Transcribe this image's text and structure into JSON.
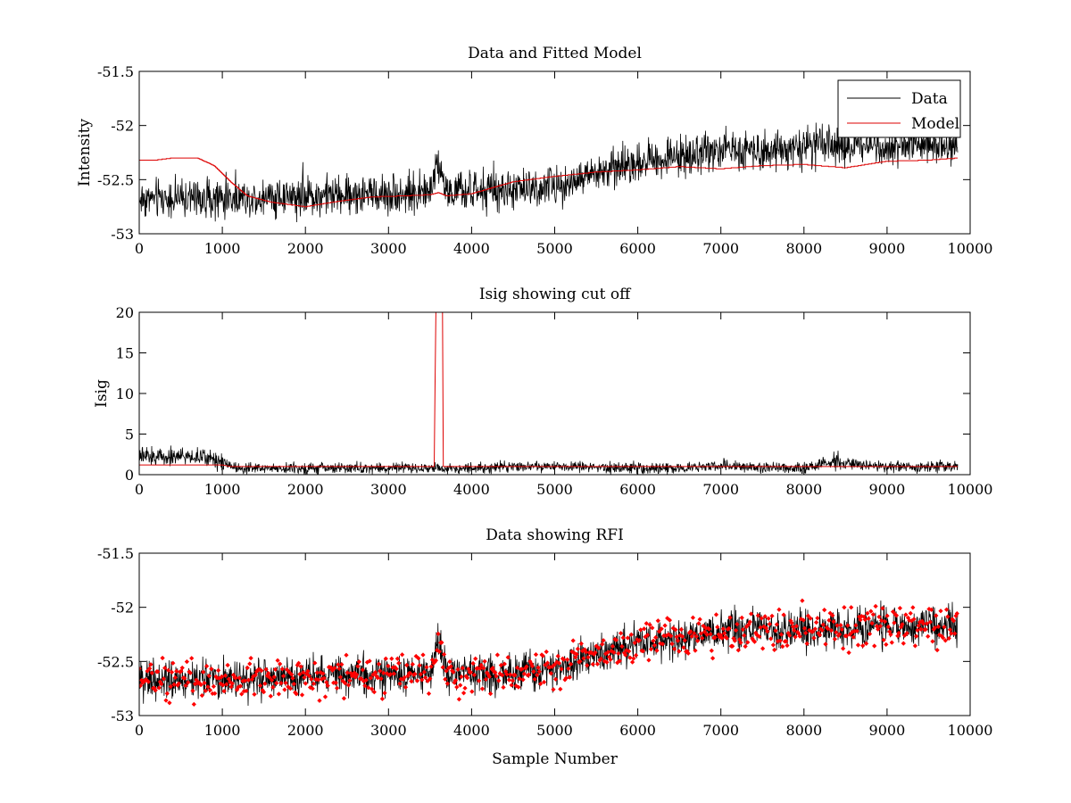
{
  "chart_data": [
    {
      "type": "line",
      "title": "Data and Fitted Model",
      "xlabel": "",
      "ylabel": "Intensity",
      "xlim": [
        0,
        10000
      ],
      "ylim": [
        -53,
        -51.5
      ],
      "x_ticks": [
        "0",
        "1000",
        "2000",
        "3000",
        "4000",
        "5000",
        "6000",
        "7000",
        "8000",
        "9000",
        "10000"
      ],
      "y_ticks": [
        "-53",
        "-52.5",
        "-52",
        "-51.5"
      ],
      "legend_position": "top-right",
      "series": [
        {
          "name": "Data",
          "color": "#000000",
          "style": "noisy line, ~9850 samples, noise amplitude ~0.1",
          "x": [
            0,
            500,
            1000,
            1500,
            2000,
            2500,
            3000,
            3500,
            3600,
            3700,
            4000,
            4500,
            5000,
            5500,
            6000,
            6500,
            7000,
            7500,
            8000,
            8500,
            9000,
            9500,
            9850
          ],
          "values": [
            -52.68,
            -52.67,
            -52.67,
            -52.66,
            -52.65,
            -52.64,
            -52.63,
            -52.62,
            -52.3,
            -52.62,
            -52.62,
            -52.6,
            -52.56,
            -52.45,
            -52.33,
            -52.28,
            -52.22,
            -52.22,
            -52.2,
            -52.19,
            -52.18,
            -52.17,
            -52.17
          ]
        },
        {
          "name": "Model",
          "color": "#dd0000",
          "x": [
            0,
            200,
            400,
            700,
            900,
            1100,
            1300,
            1600,
            2000,
            2400,
            2800,
            3200,
            3500,
            3600,
            3700,
            4000,
            4500,
            5000,
            5500,
            6000,
            6500,
            7000,
            7500,
            8000,
            8500,
            9000,
            9500,
            9850
          ],
          "values": [
            -52.32,
            -52.32,
            -52.3,
            -52.3,
            -52.37,
            -52.52,
            -52.65,
            -52.71,
            -52.75,
            -52.7,
            -52.66,
            -52.65,
            -52.64,
            -52.62,
            -52.65,
            -52.63,
            -52.52,
            -52.47,
            -52.43,
            -52.41,
            -52.38,
            -52.4,
            -52.37,
            -52.36,
            -52.39,
            -52.33,
            -52.32,
            -52.3
          ]
        }
      ]
    },
    {
      "type": "line",
      "title": "Isig showing cut off",
      "xlabel": "",
      "ylabel": "Isig",
      "xlim": [
        0,
        10000
      ],
      "ylim": [
        0,
        20
      ],
      "x_ticks": [
        "0",
        "1000",
        "2000",
        "3000",
        "4000",
        "5000",
        "6000",
        "7000",
        "8000",
        "9000",
        "10000"
      ],
      "y_ticks": [
        "0",
        "5",
        "10",
        "15",
        "20"
      ],
      "series": [
        {
          "color": "#000000",
          "style": "noisy line",
          "x": [
            0,
            500,
            900,
            1100,
            1200,
            2000,
            3000,
            4000,
            4400,
            5000,
            6000,
            6500,
            7000,
            7500,
            8000,
            8400,
            8600,
            9000,
            9850
          ],
          "values": [
            2.2,
            2.3,
            2.0,
            1.2,
            0.8,
            0.8,
            0.8,
            0.8,
            1.0,
            1.0,
            0.8,
            0.8,
            1.2,
            0.9,
            0.8,
            1.6,
            1.2,
            1.0,
            1.0
          ]
        },
        {
          "color": "#dd0000",
          "style": "cut-off level with spike region near 3550-3650",
          "x": [
            0,
            1000,
            1100,
            3550,
            3560,
            3570,
            3650,
            3660,
            9850
          ],
          "values": [
            1.2,
            1.2,
            1.0,
            1.0,
            10.5,
            20,
            20,
            1.0,
            1.0
          ]
        }
      ]
    },
    {
      "type": "line",
      "title": "Data showing RFI",
      "xlabel": "Sample Number",
      "ylabel": "",
      "xlim": [
        0,
        10000
      ],
      "ylim": [
        -53,
        -51.5
      ],
      "x_ticks": [
        "0",
        "1000",
        "2000",
        "3000",
        "4000",
        "5000",
        "6000",
        "7000",
        "8000",
        "9000",
        "10000"
      ],
      "y_ticks": [
        "-53",
        "-52.5",
        "-52",
        "-51.5"
      ],
      "series": [
        {
          "color": "#000000",
          "style": "noisy line underneath markers",
          "x": [
            0,
            500,
            1000,
            1500,
            2000,
            2500,
            3000,
            3500,
            3600,
            3700,
            4000,
            4500,
            5000,
            5500,
            6000,
            6500,
            7000,
            7500,
            8000,
            8500,
            9000,
            9500,
            9850
          ],
          "values": [
            -52.68,
            -52.67,
            -52.67,
            -52.66,
            -52.65,
            -52.64,
            -52.63,
            -52.62,
            -52.3,
            -52.62,
            -52.62,
            -52.6,
            -52.56,
            -52.45,
            -52.33,
            -52.28,
            -52.22,
            -52.22,
            -52.2,
            -52.19,
            -52.18,
            -52.17,
            -52.17
          ]
        },
        {
          "color": "#ff0000",
          "style": "red dot markers on flagged (RFI) samples, covering nearly all points",
          "x": [
            0,
            500,
            1000,
            1500,
            2000,
            2500,
            3000,
            3500,
            3600,
            3700,
            4000,
            4500,
            5000,
            5500,
            6000,
            6500,
            7000,
            7500,
            8000,
            8500,
            9000,
            9500,
            9850
          ],
          "values": [
            -52.68,
            -52.67,
            -52.67,
            -52.66,
            -52.65,
            -52.64,
            -52.63,
            -52.62,
            -52.3,
            -52.62,
            -52.62,
            -52.6,
            -52.56,
            -52.45,
            -52.33,
            -52.28,
            -52.22,
            -52.22,
            -52.2,
            -52.19,
            -52.18,
            -52.17,
            -52.17
          ]
        }
      ]
    }
  ]
}
